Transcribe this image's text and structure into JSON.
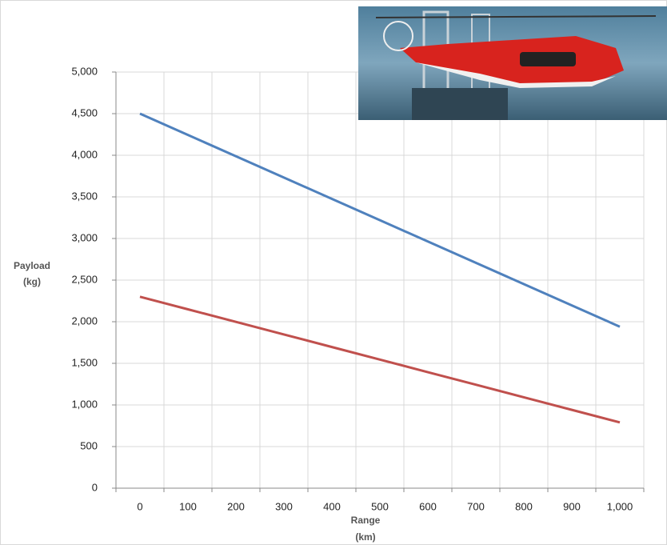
{
  "chart_data": {
    "type": "line",
    "xlabel": [
      "Range",
      "(km)"
    ],
    "ylabel": [
      "Payload",
      "(kg)"
    ],
    "categories": [
      "0",
      "100",
      "200",
      "300",
      "400",
      "500",
      "600",
      "700",
      "800",
      "900",
      "1,000"
    ],
    "series": [
      {
        "color": "#4f81bd",
        "values": [
          4500,
          4244,
          3988,
          3732,
          3476,
          3220,
          2964,
          2708,
          2452,
          2196,
          1940
        ]
      },
      {
        "color": "#c0504d",
        "values": [
          2300,
          2149,
          1998,
          1847,
          1696,
          1545,
          1394,
          1243,
          1092,
          941,
          790
        ]
      }
    ],
    "ylim": [
      0,
      5000
    ],
    "yticks": [
      0,
      500,
      {
        "value": 1000,
        "label": "1,000"
      },
      {
        "value": 1500,
        "label": "1,500"
      },
      {
        "value": 2000,
        "label": "2,000"
      },
      {
        "value": 2500,
        "label": "2,500"
      },
      {
        "value": 3000,
        "label": "3,000"
      },
      {
        "value": 3500,
        "label": "3,500"
      },
      {
        "value": 4000,
        "label": "4,000"
      },
      {
        "value": 4500,
        "label": "4,500"
      },
      {
        "value": 5000,
        "label": "5,000"
      }
    ],
    "grid": true
  }
}
